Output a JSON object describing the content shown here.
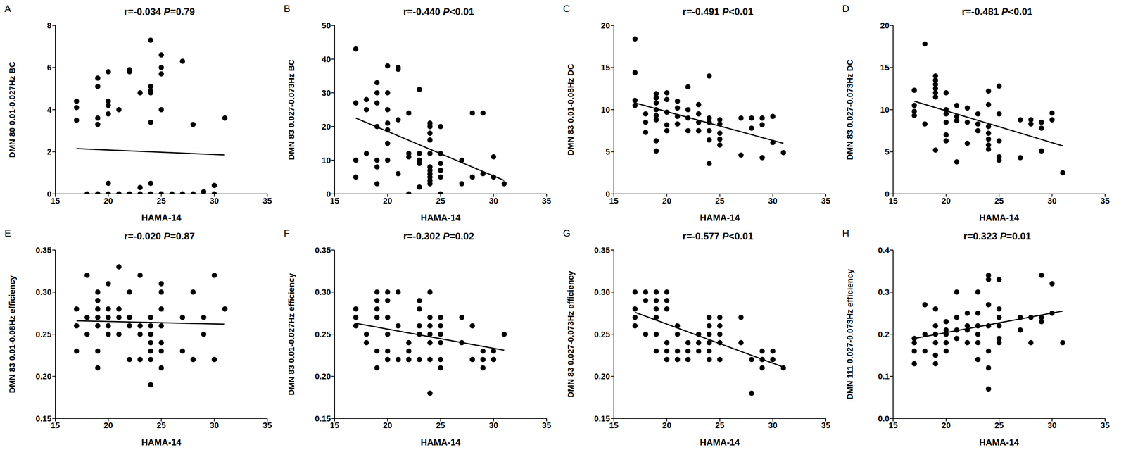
{
  "chart_data": [
    {
      "type": "scatter",
      "panel": "A",
      "title": "r=-0.034 P=0.79",
      "x_label": "HAMA-14",
      "y_label": "DMN 80 0.01-0.027Hz BC",
      "color": "#000000",
      "x": [
        17,
        17,
        17,
        18,
        19,
        19,
        19,
        19,
        19,
        20,
        20,
        20,
        20,
        20,
        20,
        21,
        21,
        22,
        22,
        22,
        23,
        23,
        23,
        24,
        24,
        24,
        24,
        24,
        24,
        24,
        25,
        25,
        25,
        25,
        25,
        26,
        27,
        27,
        28,
        28,
        29,
        30,
        30,
        31
      ],
      "y": [
        4.4,
        4.1,
        3.5,
        0,
        5.5,
        5.1,
        3.6,
        3.3,
        0,
        5.8,
        4.4,
        4.2,
        3.8,
        0.5,
        0,
        4.0,
        0,
        5.9,
        5.8,
        0,
        4.8,
        0.3,
        0,
        7.3,
        5.1,
        4.9,
        4.8,
        3.4,
        0.5,
        0,
        6.6,
        6.0,
        5.7,
        4.0,
        0,
        0,
        6.3,
        0,
        3.3,
        0,
        0.1,
        0.4,
        0,
        3.6
      ],
      "fit": {
        "x": [
          17,
          31
        ],
        "y": [
          2.15,
          1.85
        ]
      },
      "xlim": [
        15,
        35
      ],
      "xticks": [
        15,
        20,
        25,
        30,
        35
      ],
      "ylim": [
        0,
        8
      ],
      "yticks": [
        0,
        2,
        4,
        6,
        8
      ]
    },
    {
      "type": "scatter",
      "panel": "B",
      "title": "r=-0.440 P<0.01",
      "x_label": "HAMA-14",
      "y_label": "DMN 83 0.027-0.073Hz BC",
      "color": "#000000",
      "x": [
        17,
        17,
        17,
        17,
        18,
        18,
        18,
        19,
        19,
        19,
        19,
        19,
        19,
        19,
        20,
        20,
        20,
        20,
        20,
        20,
        20,
        21,
        21,
        21,
        21,
        22,
        22,
        22,
        22,
        23,
        23,
        23,
        23,
        23,
        24,
        24,
        24,
        24,
        24,
        24,
        24,
        24,
        24,
        24,
        24,
        25,
        25,
        25,
        25,
        25,
        25,
        27,
        27,
        28,
        28,
        29,
        29,
        30,
        30,
        31
      ],
      "y": [
        43,
        27,
        10,
        5,
        28,
        12,
        25,
        33,
        30,
        27,
        20,
        10,
        3,
        8,
        38,
        30,
        25,
        21,
        19,
        10,
        15,
        37,
        37.5,
        22,
        6,
        24,
        12,
        0,
        11,
        31,
        12,
        9,
        10,
        2,
        21,
        20,
        18,
        16,
        12,
        8,
        7,
        6,
        5,
        4,
        3,
        20,
        12,
        9,
        7,
        5,
        0,
        10,
        3,
        24,
        5,
        24,
        6,
        11,
        5,
        3
      ],
      "fit": {
        "x": [
          17,
          31
        ],
        "y": [
          22.5,
          4
        ]
      },
      "xlim": [
        15,
        35
      ],
      "xticks": [
        15,
        20,
        25,
        30,
        35
      ],
      "ylim": [
        0,
        50
      ],
      "yticks": [
        0,
        10,
        20,
        30,
        40,
        50
      ]
    },
    {
      "type": "scatter",
      "panel": "C",
      "title": "r=-0.491 P<0.01",
      "x_label": "HAMA-14",
      "y_label": "DMN 83 0.01-0.08Hz DC",
      "color": "#000000",
      "x": [
        17,
        17,
        17,
        17,
        18,
        18,
        18,
        19,
        19,
        19,
        19,
        19,
        19,
        19,
        19,
        20,
        20,
        20,
        20,
        20,
        21,
        21,
        21,
        21,
        22,
        22,
        22,
        22,
        23,
        23,
        23,
        23,
        24,
        24,
        24,
        24,
        24,
        24,
        25,
        25,
        25,
        25,
        25,
        27,
        27,
        28,
        28,
        29,
        29,
        29,
        30,
        30,
        31
      ],
      "y": [
        18.4,
        14.4,
        11.1,
        10.5,
        9.5,
        7.3,
        8.5,
        11.9,
        11.4,
        10.8,
        10,
        9.3,
        8.8,
        6.3,
        5.1,
        12,
        11.2,
        9.7,
        8.2,
        7.5,
        11,
        10.2,
        9.2,
        8.3,
        12.7,
        10,
        9,
        7.5,
        10.6,
        9.5,
        8.5,
        7.5,
        14,
        9,
        8.5,
        7.5,
        6.4,
        3.6,
        8.8,
        8.3,
        7.2,
        6.5,
        5.8,
        9,
        4.6,
        9,
        7.8,
        9,
        8.2,
        4.3,
        9.2,
        6.1,
        4.9
      ],
      "fit": {
        "x": [
          17,
          31
        ],
        "y": [
          10.8,
          6
        ]
      },
      "xlim": [
        15,
        35
      ],
      "xticks": [
        15,
        20,
        25,
        30,
        35
      ],
      "ylim": [
        0,
        20
      ],
      "yticks": [
        0,
        5,
        10,
        15,
        20
      ]
    },
    {
      "type": "scatter",
      "panel": "D",
      "title": "r=-0.481 P<0.01",
      "x_label": "HAMA-14",
      "y_label": "DMN 83 0.027-0.073Hz DC",
      "color": "#000000",
      "x": [
        17,
        17,
        17,
        17,
        18,
        18,
        19,
        19,
        19,
        19,
        19,
        19,
        19,
        20,
        20,
        20,
        20,
        20,
        20,
        21,
        21,
        21,
        21,
        22,
        22,
        22,
        23,
        23,
        23,
        24,
        24,
        24,
        24,
        24,
        24,
        24,
        25,
        25,
        25,
        25,
        25,
        27,
        27,
        28,
        28,
        29,
        29,
        29,
        30,
        30,
        31
      ],
      "y": [
        12.3,
        10.5,
        9.8,
        9.3,
        17.8,
        8.3,
        14,
        13.5,
        13,
        12.5,
        12,
        11.5,
        5.2,
        12,
        10,
        9.5,
        8.5,
        7,
        6.3,
        10.5,
        9.2,
        8.7,
        3.8,
        10.2,
        8.5,
        6,
        9.5,
        8.3,
        7.5,
        12.2,
        10.6,
        8,
        7.2,
        6.5,
        5.8,
        5.3,
        12.8,
        9.5,
        6.3,
        4.4,
        4,
        8.8,
        4.3,
        8.8,
        8.3,
        8.5,
        7.8,
        5.1,
        9.6,
        8.8,
        2.5
      ],
      "fit": {
        "x": [
          17,
          31
        ],
        "y": [
          11,
          5.7
        ]
      },
      "xlim": [
        15,
        35
      ],
      "xticks": [
        15,
        20,
        25,
        30,
        35
      ],
      "ylim": [
        0,
        20
      ],
      "yticks": [
        0,
        5,
        10,
        15,
        20
      ]
    },
    {
      "type": "scatter",
      "panel": "E",
      "title": "r=-0.020 P=0.87",
      "x_label": "HAMA-14",
      "y_label": "DMN 83 0.01-0.08Hz efficiency",
      "color": "#000000",
      "x": [
        17,
        17,
        17,
        18,
        18,
        18,
        19,
        19,
        19,
        19,
        19,
        19,
        19,
        20,
        20,
        20,
        20,
        20,
        21,
        21,
        21,
        21,
        22,
        22,
        22,
        22,
        23,
        23,
        23,
        23,
        24,
        24,
        24,
        24,
        24,
        24,
        24,
        25,
        25,
        25,
        25,
        25,
        25,
        25,
        27,
        27,
        28,
        28,
        29,
        29,
        30,
        30,
        31
      ],
      "y": [
        0.28,
        0.26,
        0.23,
        0.32,
        0.27,
        0.25,
        0.3,
        0.29,
        0.28,
        0.27,
        0.26,
        0.23,
        0.21,
        0.31,
        0.28,
        0.27,
        0.26,
        0.25,
        0.33,
        0.28,
        0.27,
        0.25,
        0.3,
        0.27,
        0.26,
        0.22,
        0.32,
        0.26,
        0.25,
        0.22,
        0.27,
        0.26,
        0.25,
        0.24,
        0.23,
        0.22,
        0.19,
        0.31,
        0.3,
        0.28,
        0.26,
        0.24,
        0.23,
        0.21,
        0.27,
        0.23,
        0.3,
        0.22,
        0.27,
        0.25,
        0.32,
        0.22,
        0.28
      ],
      "fit": {
        "x": [
          17,
          31
        ],
        "y": [
          0.266,
          0.262
        ]
      },
      "xlim": [
        15,
        35
      ],
      "xticks": [
        15,
        20,
        25,
        30,
        35
      ],
      "ylim": [
        0.15,
        0.35
      ],
      "yticks": [
        0.15,
        {
          "value": 0.2,
          "label": "0.20"
        },
        0.25,
        {
          "value": 0.3,
          "label": "0.30"
        },
        0.35
      ]
    },
    {
      "type": "scatter",
      "panel": "F",
      "title": "r=-0.302 P=0.02",
      "x_label": "HAMA-14",
      "y_label": "DMN 83 0.01-0.027Hz efficiency",
      "color": "#000000",
      "x": [
        17,
        17,
        17,
        18,
        18,
        19,
        19,
        19,
        19,
        19,
        19,
        20,
        20,
        20,
        20,
        20,
        20,
        21,
        21,
        21,
        22,
        22,
        22,
        23,
        23,
        23,
        23,
        23,
        24,
        24,
        24,
        24,
        24,
        24,
        24,
        25,
        25,
        25,
        25,
        25,
        25,
        27,
        27,
        28,
        28,
        29,
        29,
        29,
        30,
        30,
        31
      ],
      "y": [
        0.28,
        0.27,
        0.26,
        0.24,
        0.25,
        0.3,
        0.29,
        0.28,
        0.27,
        0.23,
        0.21,
        0.3,
        0.29,
        0.27,
        0.25,
        0.23,
        0.22,
        0.3,
        0.26,
        0.22,
        0.24,
        0.23,
        0.22,
        0.29,
        0.28,
        0.26,
        0.25,
        0.22,
        0.3,
        0.27,
        0.26,
        0.25,
        0.24,
        0.22,
        0.18,
        0.27,
        0.26,
        0.25,
        0.24,
        0.22,
        0.21,
        0.27,
        0.24,
        0.26,
        0.22,
        0.23,
        0.22,
        0.21,
        0.23,
        0.22,
        0.25
      ],
      "fit": {
        "x": [
          17,
          31
        ],
        "y": [
          0.263,
          0.231
        ]
      },
      "xlim": [
        15,
        35
      ],
      "xticks": [
        15,
        20,
        25,
        30,
        35
      ],
      "ylim": [
        0.15,
        0.35
      ],
      "yticks": [
        0.15,
        {
          "value": 0.2,
          "label": "0.20"
        },
        0.25,
        {
          "value": 0.3,
          "label": "0.30"
        },
        0.35
      ]
    },
    {
      "type": "scatter",
      "panel": "G",
      "title": "r=-0.577 P<0.01",
      "x_label": "HAMA-14",
      "y_label": "DMN 83 0.027-0.073Hz efficiency",
      "color": "#000000",
      "x": [
        17,
        17,
        17,
        17,
        18,
        18,
        18,
        19,
        19,
        19,
        19,
        19,
        19,
        20,
        20,
        20,
        20,
        20,
        20,
        21,
        21,
        21,
        21,
        22,
        22,
        22,
        23,
        23,
        23,
        24,
        24,
        24,
        24,
        24,
        24,
        25,
        25,
        25,
        25,
        25,
        27,
        27,
        28,
        28,
        29,
        29,
        29,
        30,
        30,
        31
      ],
      "y": [
        0.3,
        0.28,
        0.27,
        0.26,
        0.3,
        0.29,
        0.25,
        0.3,
        0.29,
        0.28,
        0.27,
        0.25,
        0.23,
        0.3,
        0.29,
        0.28,
        0.24,
        0.23,
        0.22,
        0.26,
        0.25,
        0.23,
        0.22,
        0.24,
        0.23,
        0.22,
        0.25,
        0.24,
        0.23,
        0.27,
        0.26,
        0.25,
        0.24,
        0.23,
        0.22,
        0.27,
        0.26,
        0.25,
        0.24,
        0.22,
        0.27,
        0.24,
        0.22,
        0.18,
        0.23,
        0.22,
        0.21,
        0.23,
        0.22,
        0.21
      ],
      "fit": {
        "x": [
          17,
          31
        ],
        "y": [
          0.276,
          0.211
        ]
      },
      "xlim": [
        15,
        35
      ],
      "xticks": [
        15,
        20,
        25,
        30,
        35
      ],
      "ylim": [
        0.15,
        0.35
      ],
      "yticks": [
        0.15,
        {
          "value": 0.2,
          "label": "0.20"
        },
        0.25,
        {
          "value": 0.3,
          "label": "0.30"
        },
        0.35
      ]
    },
    {
      "type": "scatter",
      "panel": "H",
      "title": "r=0.323 P=0.01",
      "x_label": "HAMA-14",
      "y_label": "DMN 111 0.027-0.073Hz efficiency",
      "color": "#000000",
      "x": [
        17,
        17,
        17,
        17,
        18,
        18,
        18,
        19,
        19,
        19,
        19,
        19,
        19,
        20,
        20,
        20,
        20,
        20,
        21,
        21,
        21,
        21,
        22,
        22,
        22,
        22,
        23,
        23,
        23,
        23,
        23,
        23,
        24,
        24,
        24,
        24,
        24,
        24,
        24,
        25,
        25,
        25,
        25,
        25,
        25,
        27,
        27,
        28,
        28,
        29,
        29,
        29,
        30,
        30,
        31
      ],
      "y": [
        0.19,
        0.18,
        0.16,
        0.13,
        0.27,
        0.2,
        0.16,
        0.26,
        0.22,
        0.2,
        0.18,
        0.15,
        0.13,
        0.23,
        0.21,
        0.2,
        0.18,
        0.16,
        0.3,
        0.24,
        0.21,
        0.19,
        0.25,
        0.22,
        0.21,
        0.18,
        0.3,
        0.25,
        0.22,
        0.2,
        0.18,
        0.14,
        0.34,
        0.33,
        0.27,
        0.22,
        0.16,
        0.12,
        0.07,
        0.33,
        0.26,
        0.24,
        0.22,
        0.19,
        0.18,
        0.24,
        0.21,
        0.24,
        0.18,
        0.34,
        0.24,
        0.23,
        0.32,
        0.25,
        0.18
      ],
      "fit": {
        "x": [
          17,
          31
        ],
        "y": [
          0.19,
          0.255
        ]
      },
      "xlim": [
        15,
        35
      ],
      "xticks": [
        15,
        20,
        25,
        30,
        35
      ],
      "ylim": [
        0,
        0.4
      ],
      "yticks": [
        {
          "value": 0,
          "label": "0.0"
        },
        0.1,
        0.2,
        0.3,
        0.4
      ]
    }
  ]
}
